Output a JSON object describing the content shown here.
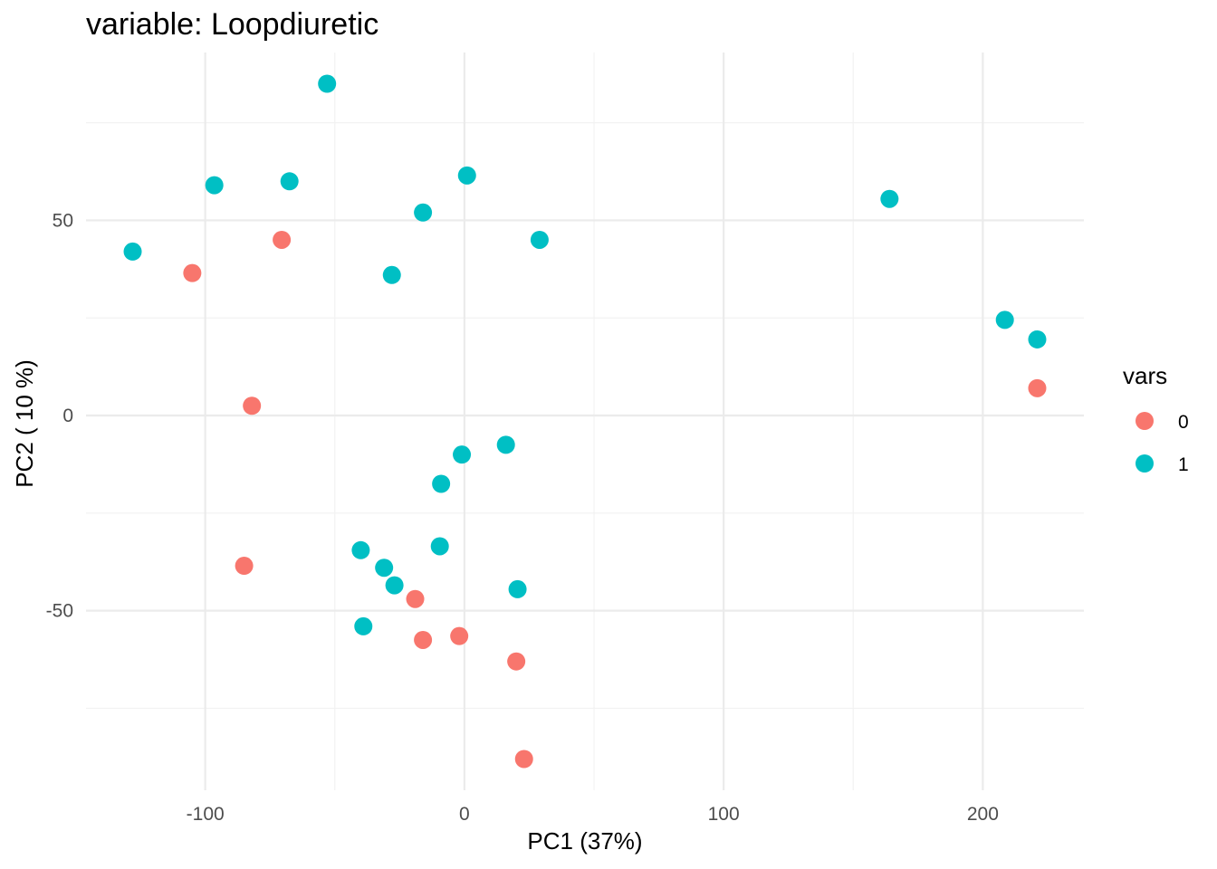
{
  "chart_data": {
    "type": "scatter",
    "title": "variable: Loopdiuretic",
    "xlabel": "PC1 (37%)",
    "ylabel": "PC2 ( 10 %)",
    "xlim": [
      -146,
      239
    ],
    "ylim": [
      -96,
      93
    ],
    "x_ticks": [
      -100,
      0,
      100,
      200
    ],
    "x_tick_labels": [
      "-100",
      "0",
      "100",
      "200"
    ],
    "y_ticks": [
      -50,
      0,
      50
    ],
    "y_tick_labels": [
      "-50",
      "0",
      "50"
    ],
    "x_minor_ticks": [
      -50,
      50,
      150
    ],
    "y_minor_ticks": [
      -75,
      -25,
      25,
      75
    ],
    "grid": true,
    "legend": {
      "title": "vars",
      "position": "right"
    },
    "series": [
      {
        "name": "0",
        "color": "#F8766D",
        "points": [
          {
            "x": -105,
            "y": 36.5
          },
          {
            "x": -70.5,
            "y": 45
          },
          {
            "x": -82,
            "y": 2.5
          },
          {
            "x": -85,
            "y": -38.5
          },
          {
            "x": -19,
            "y": -47
          },
          {
            "x": -16,
            "y": -57.5
          },
          {
            "x": -2,
            "y": -56.5
          },
          {
            "x": 20,
            "y": -63
          },
          {
            "x": 23,
            "y": -88
          },
          {
            "x": 221,
            "y": 7
          }
        ]
      },
      {
        "name": "1",
        "color": "#00BFC4",
        "points": [
          {
            "x": -53,
            "y": 85
          },
          {
            "x": -96.5,
            "y": 59
          },
          {
            "x": -67.5,
            "y": 60
          },
          {
            "x": -128,
            "y": 42
          },
          {
            "x": 1,
            "y": 61.5
          },
          {
            "x": -16,
            "y": 52
          },
          {
            "x": -28,
            "y": 36
          },
          {
            "x": 29,
            "y": 45
          },
          {
            "x": 164,
            "y": 55.5
          },
          {
            "x": 208.5,
            "y": 24.5
          },
          {
            "x": 221,
            "y": 19.5
          },
          {
            "x": 16,
            "y": -7.5
          },
          {
            "x": -1,
            "y": -10
          },
          {
            "x": -9,
            "y": -17.5
          },
          {
            "x": -9.5,
            "y": -33.5
          },
          {
            "x": -40,
            "y": -34.5
          },
          {
            "x": -31,
            "y": -39
          },
          {
            "x": -27,
            "y": -43.5
          },
          {
            "x": 20.5,
            "y": -44.5
          },
          {
            "x": -39,
            "y": -54
          }
        ]
      }
    ]
  }
}
